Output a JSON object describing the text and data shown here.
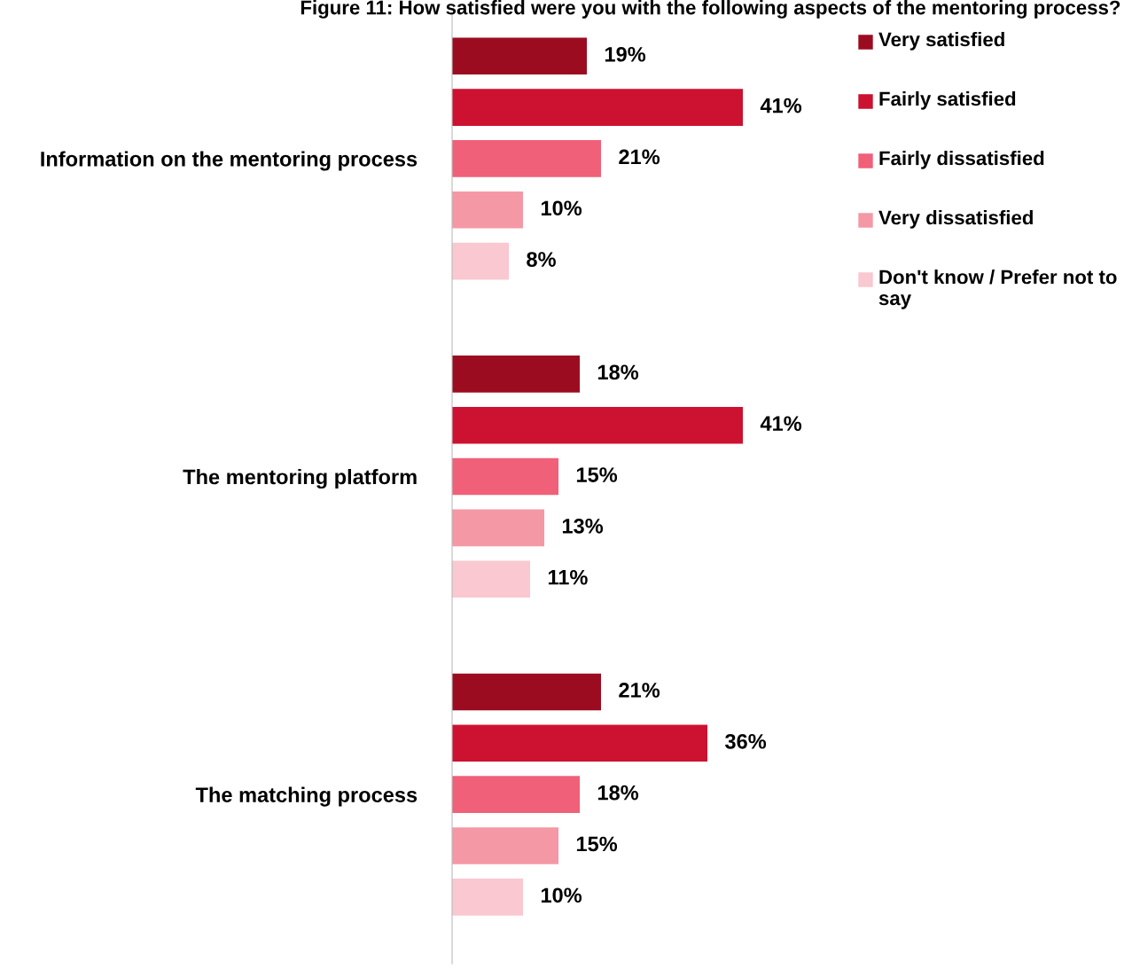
{
  "chart_data": {
    "type": "bar",
    "orientation": "horizontal",
    "title": "Figure 11: How satisfied were you with the following aspects of the mentoring process?",
    "categories": [
      "Information on the mentoring process",
      "The mentoring platform",
      "The matching process"
    ],
    "series": [
      {
        "name": "Very satisfied",
        "color": "#9c0c20",
        "values": [
          19,
          18,
          21
        ],
        "value_labels": [
          "19%",
          "18%",
          "21%"
        ]
      },
      {
        "name": "Fairly satisfied",
        "color": "#cc1230",
        "values": [
          41,
          41,
          36
        ],
        "value_labels": [
          "41%",
          "41%",
          "36%"
        ]
      },
      {
        "name": "Fairly dissatisfied",
        "color": "#f06078",
        "values": [
          21,
          15,
          18
        ],
        "value_labels": [
          "21%",
          "15%",
          "18%"
        ]
      },
      {
        "name": "Very dissatisfied",
        "color": "#f598a5",
        "values": [
          10,
          13,
          15
        ],
        "value_labels": [
          "10%",
          "13%",
          "15%"
        ]
      },
      {
        "name": "Don't know / Prefer not to say",
        "color": "#f9c8d0",
        "values": [
          8,
          11,
          10
        ],
        "value_labels": [
          "8%",
          "11%",
          "10%"
        ]
      }
    ],
    "legend": "top right",
    "grid": false
  }
}
